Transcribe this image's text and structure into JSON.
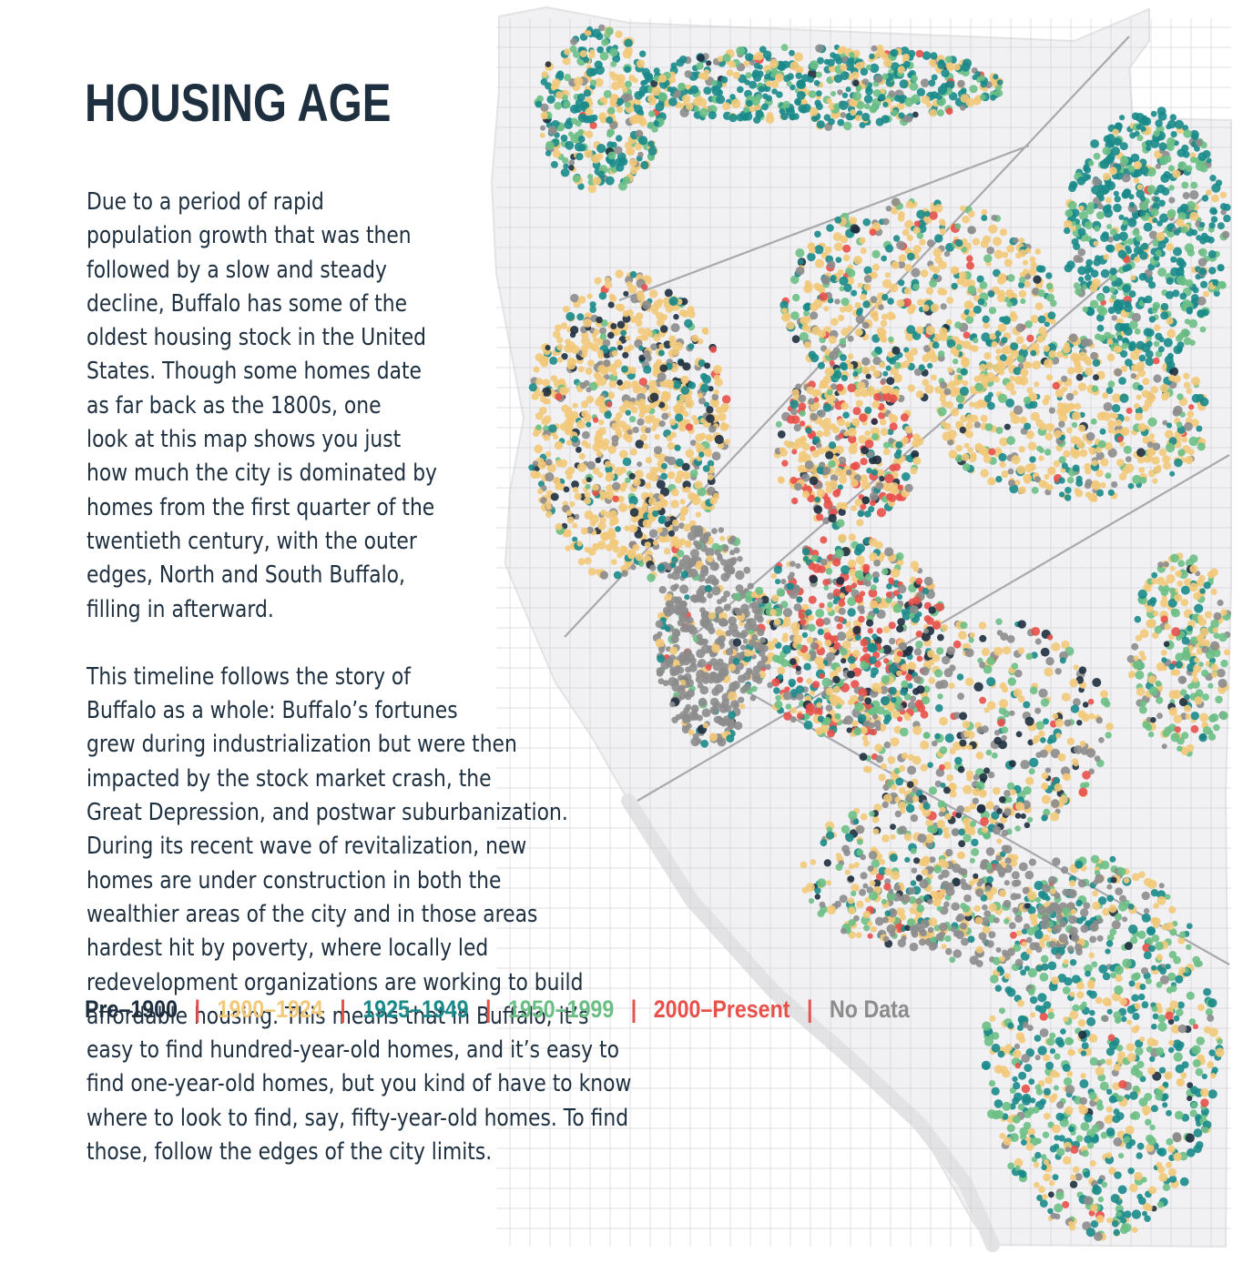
{
  "title": "HOUSING AGE",
  "paragraphs": [
    [
      "Due to a period of rapid",
      "population growth that was then",
      "followed by a slow and steady",
      "decline, Buffalo has some of the",
      "oldest housing stock in the United",
      "States. Though some homes date",
      "as far back as the 1800s, one",
      "look at this map shows you just",
      "how much the city is dominated by",
      "homes from the first quarter of the",
      "twentieth century, with the outer",
      "edges, North and South Buffalo,",
      "filling in afterward."
    ],
    [
      "This timeline follows the story of",
      "Buffalo as a whole: Buffalo’s fortunes",
      "grew during industrialization but were then",
      "impacted by the stock market crash, the",
      "Great Depression, and postwar suburbanization.",
      "During its recent wave of revitalization, new",
      "homes are under construction in both the",
      "wealthier areas of the city and in those areas",
      "hardest hit by poverty, where locally led",
      "redevelopment organizations are working to build",
      "affordable housing. This means that in Buffalo, it’s",
      "easy to find hundred-year-old homes, and it’s easy to",
      "find one-year-old homes, but you kind of have to know",
      "where to look to find, say, fifty-year-old homes. To find",
      "those, follow the edges of the city limits."
    ]
  ],
  "legend": {
    "separator": "|",
    "items": [
      {
        "label": "Pre–1900",
        "color": "#1e2f3f"
      },
      {
        "label": "1900–1924",
        "color": "#f2c97a"
      },
      {
        "label": "1925–1949",
        "color": "#1a8a8a"
      },
      {
        "label": "1950–1999",
        "color": "#6bbf85"
      },
      {
        "label": "2000–Present",
        "color": "#e8504a"
      },
      {
        "label": "No Data",
        "color": "#8c8c8c"
      }
    ]
  },
  "map": {
    "colors": {
      "land": "#f1f1f3",
      "streets": "#c9c9cc",
      "water_edge": "#e3e3e6"
    }
  }
}
